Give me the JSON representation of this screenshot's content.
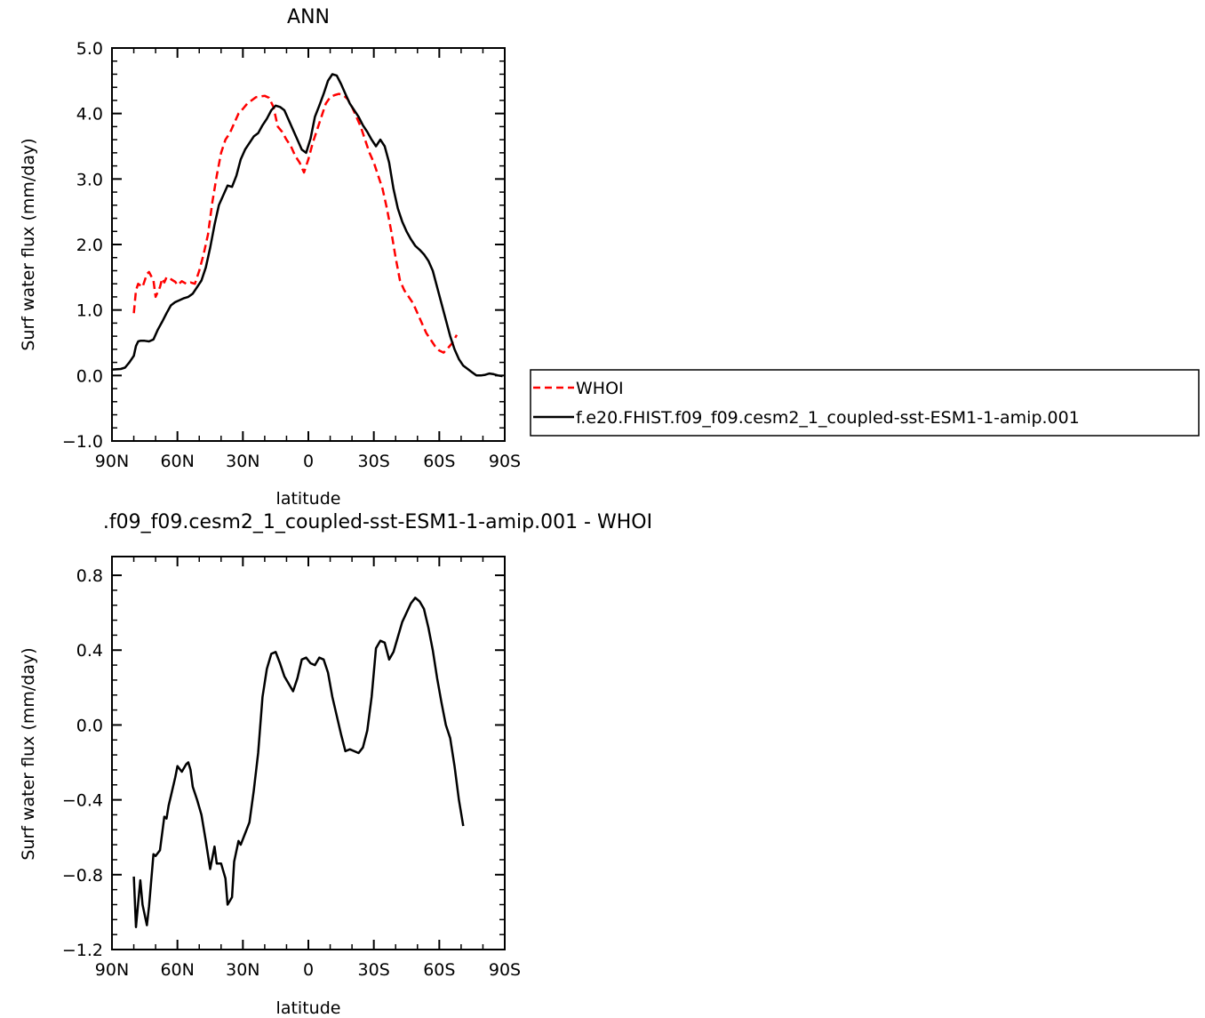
{
  "chart_data": [
    {
      "type": "line",
      "title": "ANN",
      "xlabel": "latitude",
      "ylabel": "Surf water flux (mm/day)",
      "xlim": [
        90,
        -90
      ],
      "ylim": [
        -1.0,
        5.0
      ],
      "xticks": [
        90,
        60,
        30,
        0,
        -30,
        -60,
        -90
      ],
      "xtick_labels": [
        "90N",
        "60N",
        "30N",
        "0",
        "30S",
        "60S",
        "90S"
      ],
      "yticks": [
        -1,
        0,
        1,
        2,
        3,
        4,
        5
      ],
      "ytick_labels": [
        "-1.0",
        "0.0",
        "1.0",
        "2.0",
        "3.0",
        "4.0",
        "5.0"
      ],
      "legend": {
        "placement": "right, outside plot"
      },
      "series": [
        {
          "name": "WHOI",
          "color": "#ff0000",
          "dash": "dashed",
          "points": [
            [
              80,
              0.95
            ],
            [
              79,
              1.3
            ],
            [
              78,
              1.4
            ],
            [
              76,
              1.35
            ],
            [
              74,
              1.55
            ],
            [
              73,
              1.58
            ],
            [
              71,
              1.45
            ],
            [
              70,
              1.2
            ],
            [
              68,
              1.35
            ],
            [
              67,
              1.48
            ],
            [
              66,
              1.42
            ],
            [
              65,
              1.5
            ],
            [
              63,
              1.47
            ],
            [
              61,
              1.43
            ],
            [
              60,
              1.38
            ],
            [
              58,
              1.44
            ],
            [
              56,
              1.4
            ],
            [
              54,
              1.42
            ],
            [
              52,
              1.4
            ],
            [
              50,
              1.6
            ],
            [
              48,
              1.85
            ],
            [
              46,
              2.15
            ],
            [
              44,
              2.65
            ],
            [
              42,
              3.05
            ],
            [
              40,
              3.4
            ],
            [
              38,
              3.6
            ],
            [
              36,
              3.7
            ],
            [
              34,
              3.85
            ],
            [
              32,
              4.0
            ],
            [
              30,
              4.07
            ],
            [
              28,
              4.15
            ],
            [
              26,
              4.2
            ],
            [
              24,
              4.25
            ],
            [
              22,
              4.26
            ],
            [
              20,
              4.27
            ],
            [
              18,
              4.24
            ],
            [
              16,
              4.1
            ],
            [
              14,
              3.8
            ],
            [
              12,
              3.72
            ],
            [
              10,
              3.6
            ],
            [
              8,
              3.5
            ],
            [
              6,
              3.35
            ],
            [
              4,
              3.25
            ],
            [
              2,
              3.1
            ],
            [
              0,
              3.3
            ],
            [
              -2,
              3.55
            ],
            [
              -4,
              3.75
            ],
            [
              -6,
              3.95
            ],
            [
              -8,
              4.15
            ],
            [
              -10,
              4.25
            ],
            [
              -12,
              4.28
            ],
            [
              -14,
              4.3
            ],
            [
              -16,
              4.28
            ],
            [
              -18,
              4.22
            ],
            [
              -20,
              4.1
            ],
            [
              -22,
              3.95
            ],
            [
              -24,
              3.8
            ],
            [
              -26,
              3.6
            ],
            [
              -28,
              3.4
            ],
            [
              -30,
              3.25
            ],
            [
              -32,
              3.05
            ],
            [
              -34,
              2.85
            ],
            [
              -36,
              2.55
            ],
            [
              -38,
              2.2
            ],
            [
              -40,
              1.8
            ],
            [
              -42,
              1.45
            ],
            [
              -44,
              1.3
            ],
            [
              -46,
              1.2
            ],
            [
              -48,
              1.1
            ],
            [
              -50,
              0.95
            ],
            [
              -52,
              0.8
            ],
            [
              -54,
              0.65
            ],
            [
              -56,
              0.55
            ],
            [
              -58,
              0.45
            ],
            [
              -60,
              0.38
            ],
            [
              -62,
              0.35
            ],
            [
              -64,
              0.42
            ],
            [
              -66,
              0.5
            ],
            [
              -68,
              0.62
            ]
          ]
        },
        {
          "name": "f.e20.FHIST.f09_f09.cesm2_1_coupled-sst-ESM1-1-amip.001",
          "color": "#000000",
          "dash": "solid",
          "points": [
            [
              90,
              0.09
            ],
            [
              86,
              0.1
            ],
            [
              84,
              0.12
            ],
            [
              82,
              0.2
            ],
            [
              80,
              0.3
            ],
            [
              79,
              0.45
            ],
            [
              78,
              0.52
            ],
            [
              77,
              0.53
            ],
            [
              75,
              0.53
            ],
            [
              73,
              0.52
            ],
            [
              71,
              0.55
            ],
            [
              69,
              0.7
            ],
            [
              67,
              0.82
            ],
            [
              65,
              0.95
            ],
            [
              63,
              1.07
            ],
            [
              61,
              1.12
            ],
            [
              59,
              1.15
            ],
            [
              57,
              1.18
            ],
            [
              55,
              1.2
            ],
            [
              53,
              1.25
            ],
            [
              51,
              1.35
            ],
            [
              49,
              1.45
            ],
            [
              47,
              1.65
            ],
            [
              45,
              1.95
            ],
            [
              43,
              2.3
            ],
            [
              41,
              2.6
            ],
            [
              39,
              2.75
            ],
            [
              37,
              2.9
            ],
            [
              35,
              2.88
            ],
            [
              33,
              3.05
            ],
            [
              31,
              3.3
            ],
            [
              29,
              3.45
            ],
            [
              27,
              3.55
            ],
            [
              25,
              3.65
            ],
            [
              23,
              3.7
            ],
            [
              21,
              3.82
            ],
            [
              19,
              3.92
            ],
            [
              17,
              4.05
            ],
            [
              15,
              4.12
            ],
            [
              13,
              4.1
            ],
            [
              11,
              4.05
            ],
            [
              9,
              3.9
            ],
            [
              7,
              3.75
            ],
            [
              5,
              3.6
            ],
            [
              3,
              3.45
            ],
            [
              1,
              3.4
            ],
            [
              -1,
              3.62
            ],
            [
              -3,
              3.95
            ],
            [
              -5,
              4.12
            ],
            [
              -7,
              4.3
            ],
            [
              -9,
              4.5
            ],
            [
              -11,
              4.6
            ],
            [
              -13,
              4.58
            ],
            [
              -15,
              4.45
            ],
            [
              -17,
              4.3
            ],
            [
              -19,
              4.15
            ],
            [
              -21,
              4.05
            ],
            [
              -23,
              3.95
            ],
            [
              -25,
              3.82
            ],
            [
              -27,
              3.72
            ],
            [
              -29,
              3.6
            ],
            [
              -31,
              3.5
            ],
            [
              -33,
              3.6
            ],
            [
              -35,
              3.5
            ],
            [
              -37,
              3.25
            ],
            [
              -39,
              2.85
            ],
            [
              -41,
              2.55
            ],
            [
              -43,
              2.35
            ],
            [
              -45,
              2.2
            ],
            [
              -47,
              2.08
            ],
            [
              -49,
              1.98
            ],
            [
              -51,
              1.92
            ],
            [
              -53,
              1.85
            ],
            [
              -55,
              1.75
            ],
            [
              -57,
              1.6
            ],
            [
              -59,
              1.35
            ],
            [
              -61,
              1.1
            ],
            [
              -63,
              0.85
            ],
            [
              -65,
              0.6
            ],
            [
              -67,
              0.4
            ],
            [
              -69,
              0.25
            ],
            [
              -71,
              0.15
            ],
            [
              -73,
              0.1
            ],
            [
              -75,
              0.05
            ],
            [
              -77,
              0.0
            ],
            [
              -79,
              0.0
            ],
            [
              -81,
              0.01
            ],
            [
              -83,
              0.03
            ],
            [
              -85,
              0.02
            ],
            [
              -87,
              0.0
            ],
            [
              -89,
              -0.01
            ]
          ]
        }
      ]
    },
    {
      "type": "line",
      "title": ".f09_f09.cesm2_1_coupled-sst-ESM1-1-amip.001 - WHOI",
      "xlabel": "latitude",
      "ylabel": "Surf water flux (mm/day)",
      "xlim": [
        90,
        -90
      ],
      "ylim": [
        -1.2,
        0.9
      ],
      "xticks": [
        90,
        60,
        30,
        0,
        -30,
        -60,
        -90
      ],
      "xtick_labels": [
        "90N",
        "60N",
        "30N",
        "0",
        "30S",
        "60S",
        "90S"
      ],
      "yticks": [
        -1.2,
        -0.8,
        -0.4,
        0.0,
        0.4,
        0.8
      ],
      "ytick_labels": [
        "-1.2",
        "-0.8",
        "-0.4",
        "0.0",
        "0.4",
        "0.8"
      ],
      "series": [
        {
          "color": "#000000",
          "dash": "solid",
          "points": [
            [
              80,
              -0.81
            ],
            [
              79,
              -1.08
            ],
            [
              78,
              -0.95
            ],
            [
              77,
              -0.83
            ],
            [
              76,
              -0.96
            ],
            [
              74,
              -1.07
            ],
            [
              73,
              -0.97
            ],
            [
              71,
              -0.69
            ],
            [
              70,
              -0.7
            ],
            [
              68,
              -0.67
            ],
            [
              66,
              -0.49
            ],
            [
              65,
              -0.5
            ],
            [
              64,
              -0.43
            ],
            [
              63,
              -0.38
            ],
            [
              61,
              -0.28
            ],
            [
              60,
              -0.22
            ],
            [
              58,
              -0.25
            ],
            [
              56,
              -0.21
            ],
            [
              55,
              -0.2
            ],
            [
              54,
              -0.24
            ],
            [
              53,
              -0.33
            ],
            [
              51,
              -0.4
            ],
            [
              49,
              -0.48
            ],
            [
              47,
              -0.62
            ],
            [
              45,
              -0.77
            ],
            [
              43,
              -0.65
            ],
            [
              42,
              -0.74
            ],
            [
              40,
              -0.74
            ],
            [
              38,
              -0.82
            ],
            [
              37,
              -0.96
            ],
            [
              35,
              -0.92
            ],
            [
              34,
              -0.73
            ],
            [
              32,
              -0.62
            ],
            [
              31,
              -0.64
            ],
            [
              29,
              -0.58
            ],
            [
              27,
              -0.52
            ],
            [
              25,
              -0.35
            ],
            [
              23,
              -0.15
            ],
            [
              21,
              0.15
            ],
            [
              19,
              0.3
            ],
            [
              17,
              0.38
            ],
            [
              15,
              0.39
            ],
            [
              13,
              0.33
            ],
            [
              11,
              0.26
            ],
            [
              9,
              0.22
            ],
            [
              7,
              0.18
            ],
            [
              5,
              0.25
            ],
            [
              3,
              0.35
            ],
            [
              1,
              0.36
            ],
            [
              -1,
              0.33
            ],
            [
              -3,
              0.32
            ],
            [
              -5,
              0.36
            ],
            [
              -7,
              0.35
            ],
            [
              -9,
              0.28
            ],
            [
              -11,
              0.15
            ],
            [
              -13,
              0.05
            ],
            [
              -15,
              -0.05
            ],
            [
              -17,
              -0.14
            ],
            [
              -19,
              -0.13
            ],
            [
              -21,
              -0.14
            ],
            [
              -23,
              -0.15
            ],
            [
              -25,
              -0.12
            ],
            [
              -27,
              -0.03
            ],
            [
              -29,
              0.15
            ],
            [
              -31,
              0.41
            ],
            [
              -33,
              0.45
            ],
            [
              -35,
              0.44
            ],
            [
              -37,
              0.35
            ],
            [
              -39,
              0.39
            ],
            [
              -41,
              0.47
            ],
            [
              -43,
              0.55
            ],
            [
              -45,
              0.6
            ],
            [
              -47,
              0.65
            ],
            [
              -49,
              0.68
            ],
            [
              -51,
              0.66
            ],
            [
              -53,
              0.62
            ],
            [
              -55,
              0.52
            ],
            [
              -57,
              0.4
            ],
            [
              -59,
              0.25
            ],
            [
              -61,
              0.12
            ],
            [
              -63,
              0.0
            ],
            [
              -65,
              -0.07
            ],
            [
              -67,
              -0.22
            ],
            [
              -69,
              -0.4
            ],
            [
              -71,
              -0.54
            ]
          ]
        }
      ]
    }
  ]
}
